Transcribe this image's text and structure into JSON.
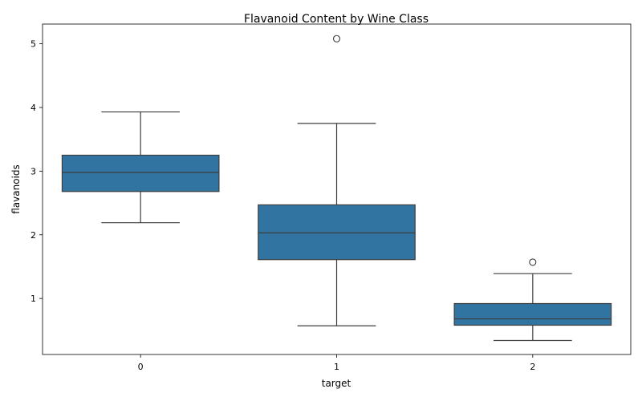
{
  "chart_data": {
    "type": "box",
    "title": "Flavanoid Content by Wine Class",
    "xlabel": "target",
    "ylabel": "flavanoids",
    "categories": [
      "0",
      "1",
      "2"
    ],
    "ylim": [
      0.12,
      5.31
    ],
    "yticks": [
      1,
      2,
      3,
      4,
      5
    ],
    "box_color": "#3274a1",
    "line_color": "#3d3d3d",
    "boxes": [
      {
        "category": "0",
        "whisker_low": 2.19,
        "q1": 2.68,
        "median": 2.98,
        "q3": 3.25,
        "whisker_high": 3.93,
        "outliers": []
      },
      {
        "category": "1",
        "whisker_low": 0.57,
        "q1": 1.61,
        "median": 2.03,
        "q3": 2.47,
        "whisker_high": 3.75,
        "outliers": [
          5.08
        ]
      },
      {
        "category": "2",
        "whisker_low": 0.34,
        "q1": 0.58,
        "median": 0.68,
        "q3": 0.92,
        "whisker_high": 1.39,
        "outliers": [
          1.57
        ]
      }
    ]
  }
}
